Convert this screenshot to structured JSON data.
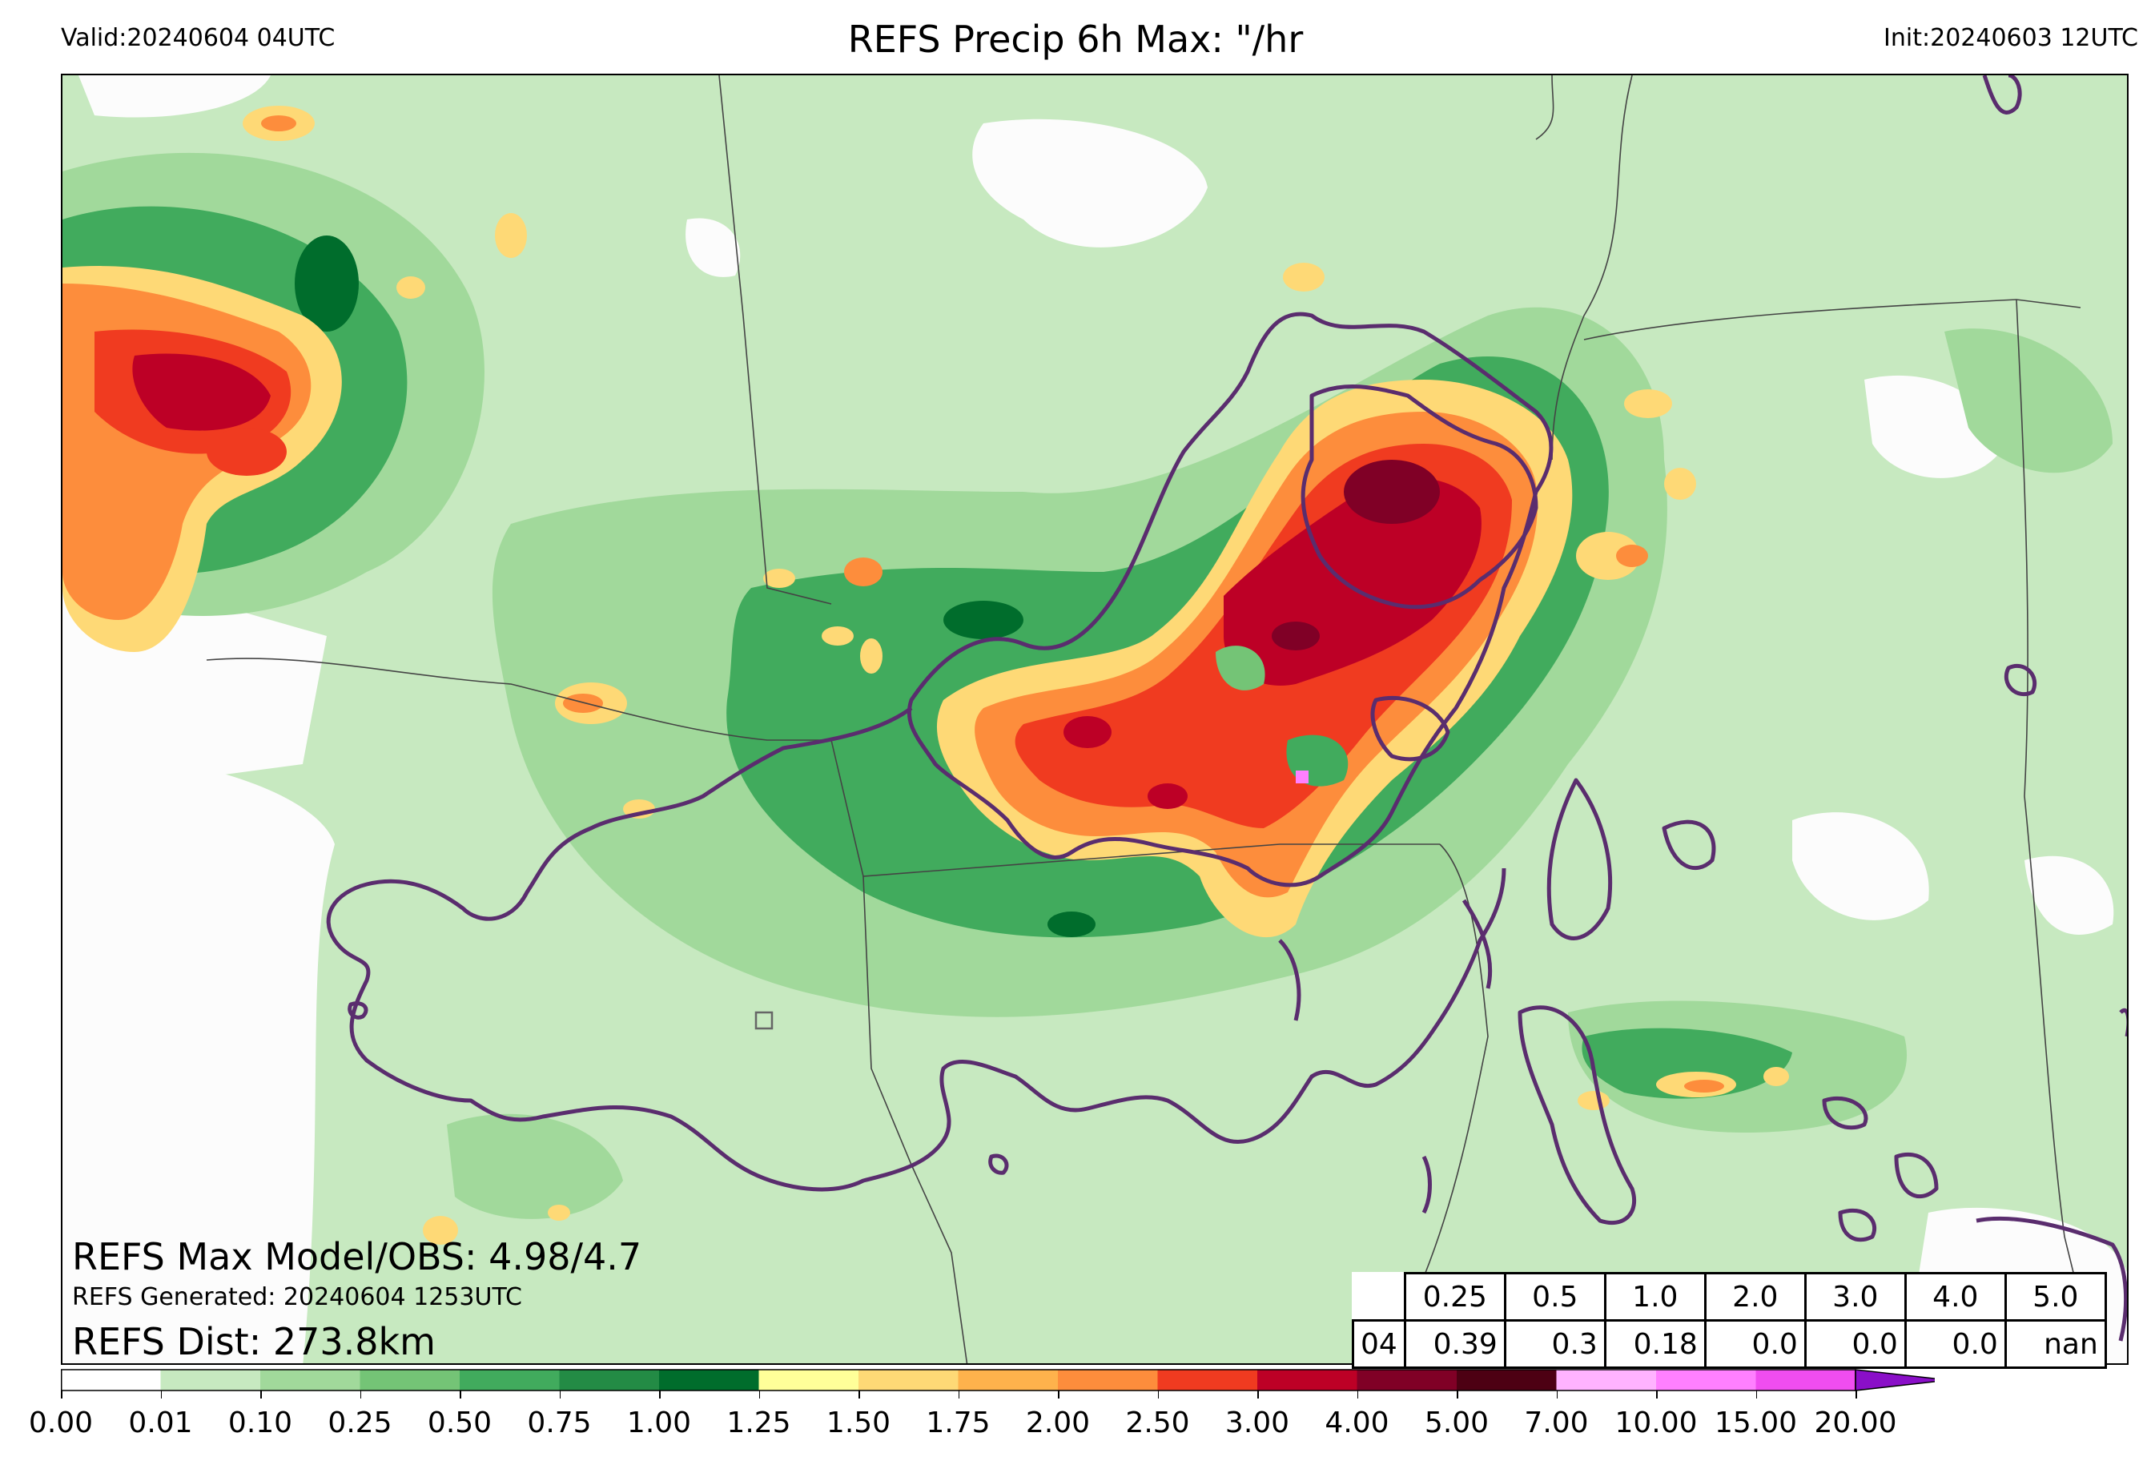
{
  "header": {
    "valid": "Valid:20240604 04UTC",
    "title": "REFS Precip 6h Max: \"/hr",
    "init": "Init:20240603 12UTC"
  },
  "stats": {
    "max_model_obs": "REFS Max Model/OBS: 4.98/4.7",
    "generated": "REFS Generated: 20240604 1253UTC",
    "distance": "REFS Dist: 273.8km"
  },
  "threshold_table": {
    "hour": "04",
    "thresholds": [
      "0.25",
      "0.5",
      "1.0",
      "2.0",
      "3.0",
      "4.0",
      "5.0"
    ],
    "values": [
      "0.39",
      "0.3",
      "0.18",
      "0.0",
      "0.0",
      "0.0",
      "nan"
    ]
  },
  "colorbar": {
    "levels": [
      "0.00",
      "0.01",
      "0.10",
      "0.25",
      "0.50",
      "0.75",
      "1.00",
      "1.25",
      "1.50",
      "1.75",
      "2.00",
      "2.50",
      "3.00",
      "4.00",
      "5.00",
      "7.00",
      "10.00",
      "15.00",
      "20.00"
    ],
    "colors": [
      "#ffffff",
      "#c7e9c0",
      "#a1d99b",
      "#74c476",
      "#41ab5d",
      "#238b45",
      "#006d2c",
      "#ffff99",
      "#fed976",
      "#feb24c",
      "#fd8d3c",
      "#f03b20",
      "#bd0026",
      "#800026",
      "#4d0013",
      "#ffb3ff",
      "#ff80ff",
      "#f04df0",
      "#d21ee6",
      "#8a0fc8"
    ],
    "arrow_color": "#4b0082"
  },
  "map": {
    "background": "#fcfcfc",
    "obs_contour_color": "#5a2d6e",
    "border_color": "#444444"
  }
}
